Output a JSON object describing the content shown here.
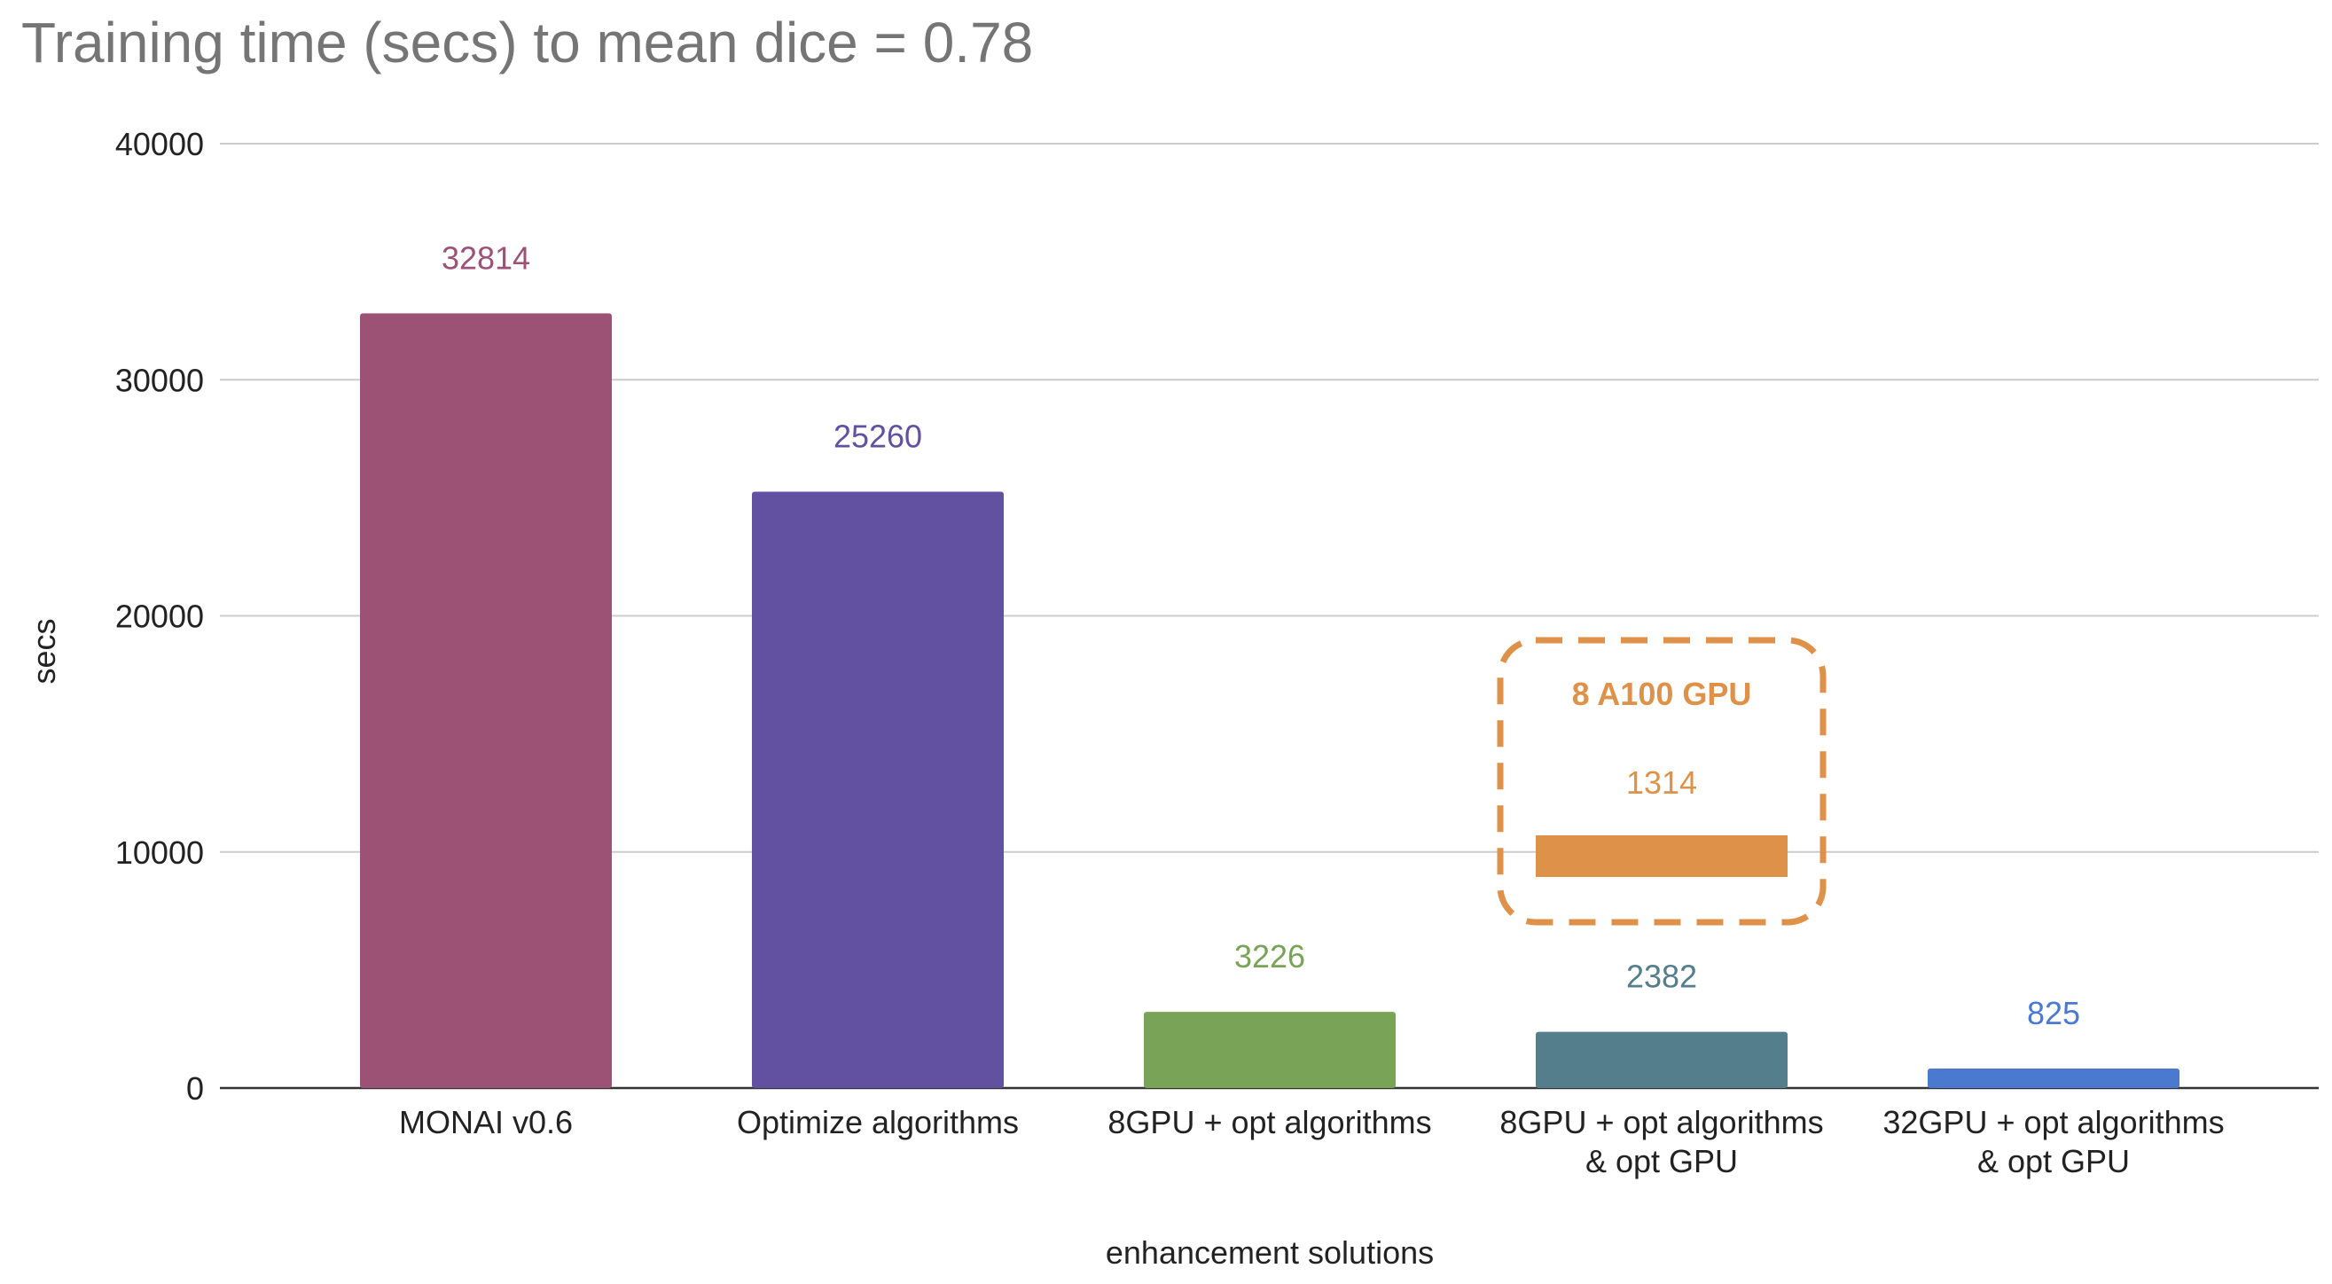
{
  "chart_data": {
    "type": "bar",
    "title": "Training time (secs) to mean dice = 0.78",
    "xlabel": "enhancement solutions",
    "ylabel": "secs",
    "ylim": [
      0,
      40000
    ],
    "yticks": [
      0,
      10000,
      20000,
      30000,
      40000
    ],
    "yticks_text": [
      "0",
      "10000",
      "20000",
      "30000",
      "40000"
    ],
    "grid": true,
    "legend": "none",
    "categories": [
      [
        "MONAI v0.6"
      ],
      [
        "Optimize algorithms"
      ],
      [
        "8GPU + opt algorithms"
      ],
      [
        "8GPU + opt algorithms",
        "& opt GPU"
      ],
      [
        "32GPU + opt algorithms",
        "& opt GPU"
      ]
    ],
    "values": [
      32814,
      25260,
      3226,
      2382,
      825
    ],
    "value_labels": [
      "32814",
      "25260",
      "3226",
      "2382",
      "825"
    ],
    "colors": [
      "#9c5275",
      "#6250a0",
      "#79a357",
      "#547e8b",
      "#4a79cf"
    ],
    "annotation": {
      "category_index": 3,
      "text": "8 A100 GPU",
      "value": 1314,
      "value_label": "1314",
      "color": "#de9249"
    }
  }
}
